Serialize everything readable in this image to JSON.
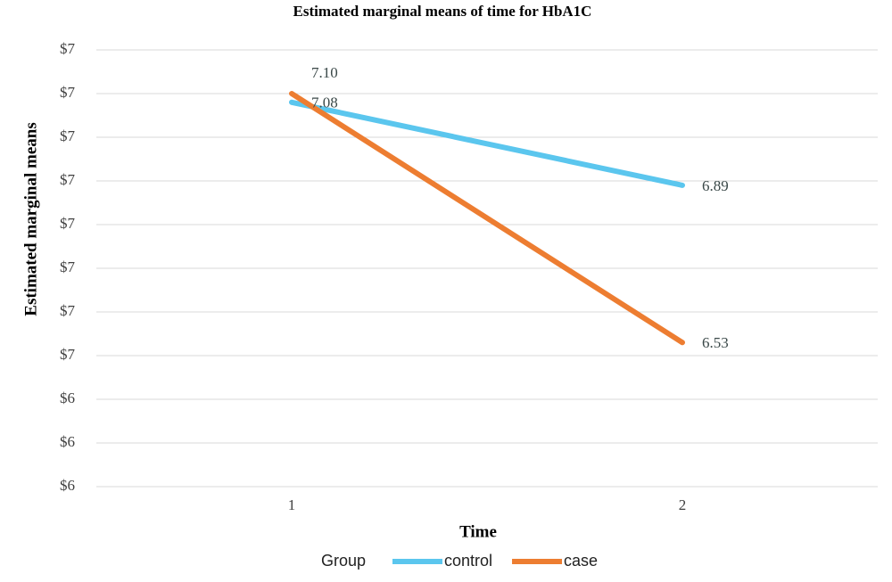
{
  "chart_data": {
    "type": "line",
    "title": "Estimated marginal means of time for HbA1C",
    "x_label": "Time",
    "y_label": "Estimated marginal means",
    "legend_title": "Group",
    "categories": [
      "1",
      "2"
    ],
    "series": [
      {
        "name": "control",
        "color": "#5bc6ee",
        "values": [
          7.08,
          6.89
        ],
        "value_labels": [
          "7.08",
          "6.89"
        ]
      },
      {
        "name": "case",
        "color": "#ed7d31",
        "values": [
          7.1,
          6.53
        ],
        "value_labels": [
          "7.10",
          "6.53"
        ]
      }
    ],
    "ylim": [
      6.2,
      7.2
    ],
    "yticks": [
      {
        "value": 6.2,
        "label": "$6"
      },
      {
        "value": 6.3,
        "label": "$6"
      },
      {
        "value": 6.4,
        "label": "$6"
      },
      {
        "value": 6.5,
        "label": "$7"
      },
      {
        "value": 6.6,
        "label": "$7"
      },
      {
        "value": 6.7,
        "label": "$7"
      },
      {
        "value": 6.8,
        "label": "$7"
      },
      {
        "value": 6.9,
        "label": "$7"
      },
      {
        "value": 7.0,
        "label": "$7"
      },
      {
        "value": 7.1,
        "label": "$7"
      },
      {
        "value": 7.2,
        "label": "$7"
      }
    ],
    "grid": true,
    "legend_position": "bottom"
  }
}
